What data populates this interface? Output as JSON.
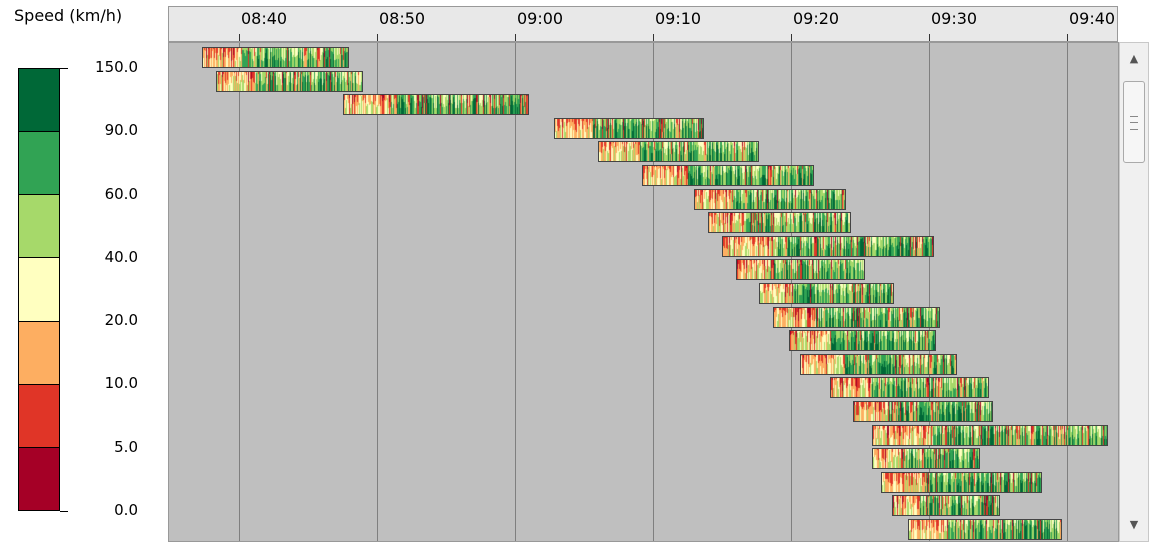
{
  "legend": {
    "title": "Speed (km/h)",
    "ticks": [
      "150.0",
      "90.0",
      "60.0",
      "40.0",
      "20.0",
      "10.0",
      "5.0",
      "0.0"
    ],
    "colors": [
      "#006837",
      "#31a354",
      "#a6d96a",
      "#ffffc0",
      "#fdae61",
      "#e03527",
      "#a50026"
    ]
  },
  "chart_data": {
    "type": "heatmap",
    "x_axis": {
      "ticks": [
        "08:40",
        "08:50",
        "09:00",
        "09:10",
        "09:20",
        "09:30",
        "09:40"
      ],
      "range": [
        "08:35",
        "09:43"
      ]
    },
    "grid": true,
    "color_scale": {
      "label": "Speed (km/h)",
      "breaks": [
        0,
        5,
        10,
        20,
        40,
        60,
        90,
        150
      ],
      "colors": [
        "#a50026",
        "#e03527",
        "#fdae61",
        "#ffffc0",
        "#a6d96a",
        "#31a354",
        "#006837"
      ]
    },
    "trips": [
      {
        "start": "08:37:20",
        "end": "08:48:00"
      },
      {
        "start": "08:38:20",
        "end": "08:49:00"
      },
      {
        "start": "08:47:30",
        "end": "09:01:00"
      },
      {
        "start": "09:02:50",
        "end": "09:13:40"
      },
      {
        "start": "09:06:00",
        "end": "09:17:40"
      },
      {
        "start": "09:09:10",
        "end": "09:21:40"
      },
      {
        "start": "09:13:00",
        "end": "09:24:00"
      },
      {
        "start": "09:14:00",
        "end": "09:24:20"
      },
      {
        "start": "09:15:00",
        "end": "09:30:20"
      },
      {
        "start": "09:16:00",
        "end": "09:25:20"
      },
      {
        "start": "09:17:40",
        "end": "09:27:30"
      },
      {
        "start": "09:18:40",
        "end": "09:30:50"
      },
      {
        "start": "09:19:50",
        "end": "09:30:30"
      },
      {
        "start": "09:20:40",
        "end": "09:32:00"
      },
      {
        "start": "09:22:50",
        "end": "09:34:20"
      },
      {
        "start": "09:24:30",
        "end": "09:34:40"
      },
      {
        "start": "09:25:50",
        "end": "09:43:00"
      },
      {
        "start": "09:25:50",
        "end": "09:33:40"
      },
      {
        "start": "09:26:30",
        "end": "09:38:10"
      },
      {
        "start": "09:27:20",
        "end": "09:35:10"
      },
      {
        "start": "09:28:30",
        "end": "09:39:40"
      }
    ]
  }
}
